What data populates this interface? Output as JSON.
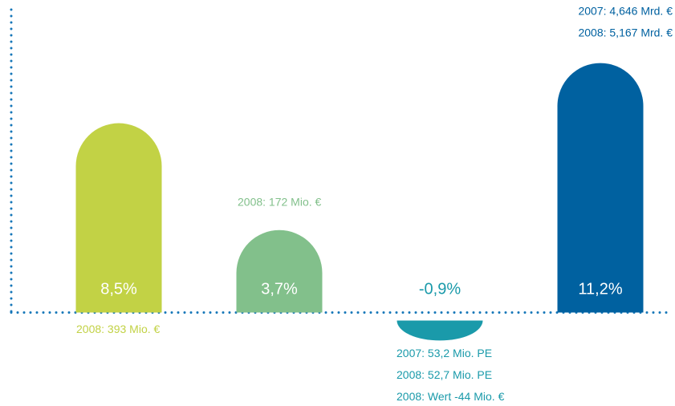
{
  "chart_data": {
    "type": "bar",
    "categories": [
      null,
      null,
      null,
      null
    ],
    "series": [
      {
        "values": [
          8.5,
          3.7,
          -0.9,
          11.2
        ],
        "value_labels": [
          "8,5%",
          "3,7%",
          "-0,9%",
          "11,2%"
        ],
        "colors": [
          "#c2d245",
          "#82c08b",
          "#1a9aaa",
          "#0061a0"
        ]
      }
    ],
    "annotations": [
      [
        "2008: 393 Mio. €"
      ],
      [
        "2008: 172 Mio. €"
      ],
      [
        "2007: 53,2 Mio. PE",
        "2008: 52,7 Mio. PE",
        "2008: Wert -44 Mio. €"
      ],
      [
        "2007: 4,646 Mrd. €",
        "2008: 5,167 Mrd. €"
      ]
    ],
    "ylim": [
      -4.2,
      13.6
    ]
  }
}
